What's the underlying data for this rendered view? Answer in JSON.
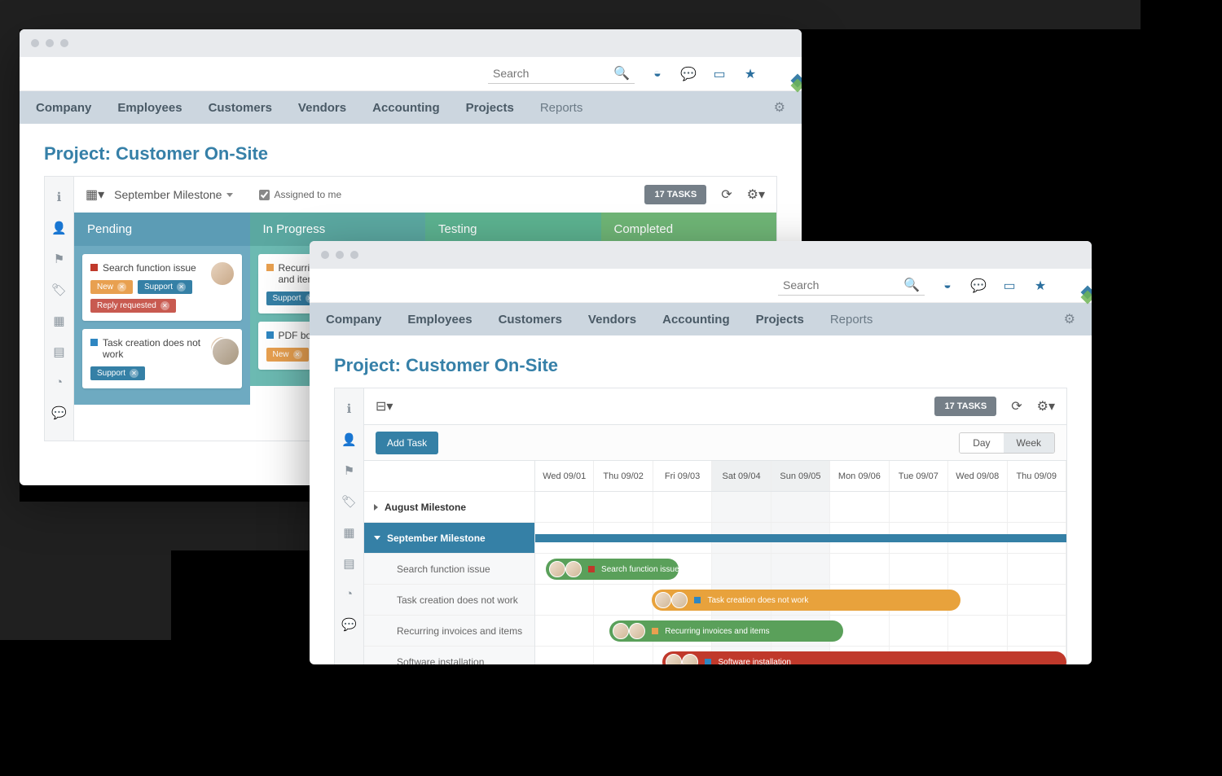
{
  "colors": {
    "primary": "#3580a6",
    "title": "#3680a8"
  },
  "nav": {
    "items": [
      "Company",
      "Employees",
      "Customers",
      "Vendors",
      "Accounting",
      "Projects",
      "Reports"
    ]
  },
  "search_placeholder": "Search",
  "page_title": "Project: Customer On-Site",
  "task_count_label": "17 TASKS",
  "window1": {
    "milestone_selector": "September Milestone",
    "checkbox_label": "Assigned to me",
    "columns": [
      {
        "name": "Pending",
        "head_bg": "#5c9cb5",
        "body_bg": "#6eaac1"
      },
      {
        "name": "In Progress",
        "head_bg": "#5ba8a1",
        "body_bg": "#6cbab2"
      },
      {
        "name": "Testing",
        "head_bg": "#5cb290",
        "body_bg": "#6ec4a0"
      },
      {
        "name": "Completed",
        "head_bg": "#6fb576",
        "body_bg": "#80c586"
      }
    ],
    "cards": {
      "pending": [
        {
          "title": "Search function issue",
          "sq": "#c0392b",
          "tags": [
            {
              "text": "New",
              "bg": "#e8a050"
            },
            {
              "text": "Support",
              "bg": "#3580a6"
            },
            {
              "text": "Reply requested",
              "bg": "#c85a50"
            }
          ]
        },
        {
          "title": "Task creation does not work",
          "sq": "#2e86c1",
          "tags": [
            {
              "text": "Support",
              "bg": "#3580a6"
            }
          ]
        }
      ],
      "inprogress": [
        {
          "title": "Recurring invoices and items",
          "sq": "#e8a050",
          "tags": [
            {
              "text": "Support",
              "bg": "#3580a6"
            }
          ]
        },
        {
          "title": "PDF bord",
          "sq": "#2e86c1",
          "tags": [
            {
              "text": "New",
              "bg": "#e8a050"
            }
          ]
        }
      ]
    }
  },
  "window2": {
    "add_task_label": "Add Task",
    "view_toggle": {
      "day": "Day",
      "week": "Week"
    },
    "dates": [
      {
        "label": "Wed 09/01",
        "weekend": false
      },
      {
        "label": "Thu 09/02",
        "weekend": false
      },
      {
        "label": "Fri 09/03",
        "weekend": false
      },
      {
        "label": "Sat 09/04",
        "weekend": true
      },
      {
        "label": "Sun 09/05",
        "weekend": true
      },
      {
        "label": "Mon 09/06",
        "weekend": false
      },
      {
        "label": "Tue 09/07",
        "weekend": false
      },
      {
        "label": "Wed 09/08",
        "weekend": false
      },
      {
        "label": "Thu 09/09",
        "weekend": false
      }
    ],
    "milestones": [
      {
        "name": "August Milestone",
        "expanded": false
      },
      {
        "name": "September Milestone",
        "expanded": true,
        "bar_color": "#3580a6",
        "tasks": [
          {
            "name": "Search function issue",
            "sq": "#c0392b",
            "bar_bg": "#5aa05a",
            "start_pct": 2,
            "width_pct": 25
          },
          {
            "name": "Task creation does not work",
            "sq": "#2e86c1",
            "bar_bg": "#e8a23c",
            "start_pct": 22,
            "width_pct": 58
          },
          {
            "name": "Recurring invoices and items",
            "sq": "#e8a050",
            "bar_bg": "#5aa05a",
            "start_pct": 14,
            "width_pct": 44
          },
          {
            "name": "Software installation",
            "sq": "#2e86c1",
            "bar_bg": "#c0392b",
            "start_pct": 24,
            "width_pct": 76
          }
        ]
      }
    ]
  }
}
